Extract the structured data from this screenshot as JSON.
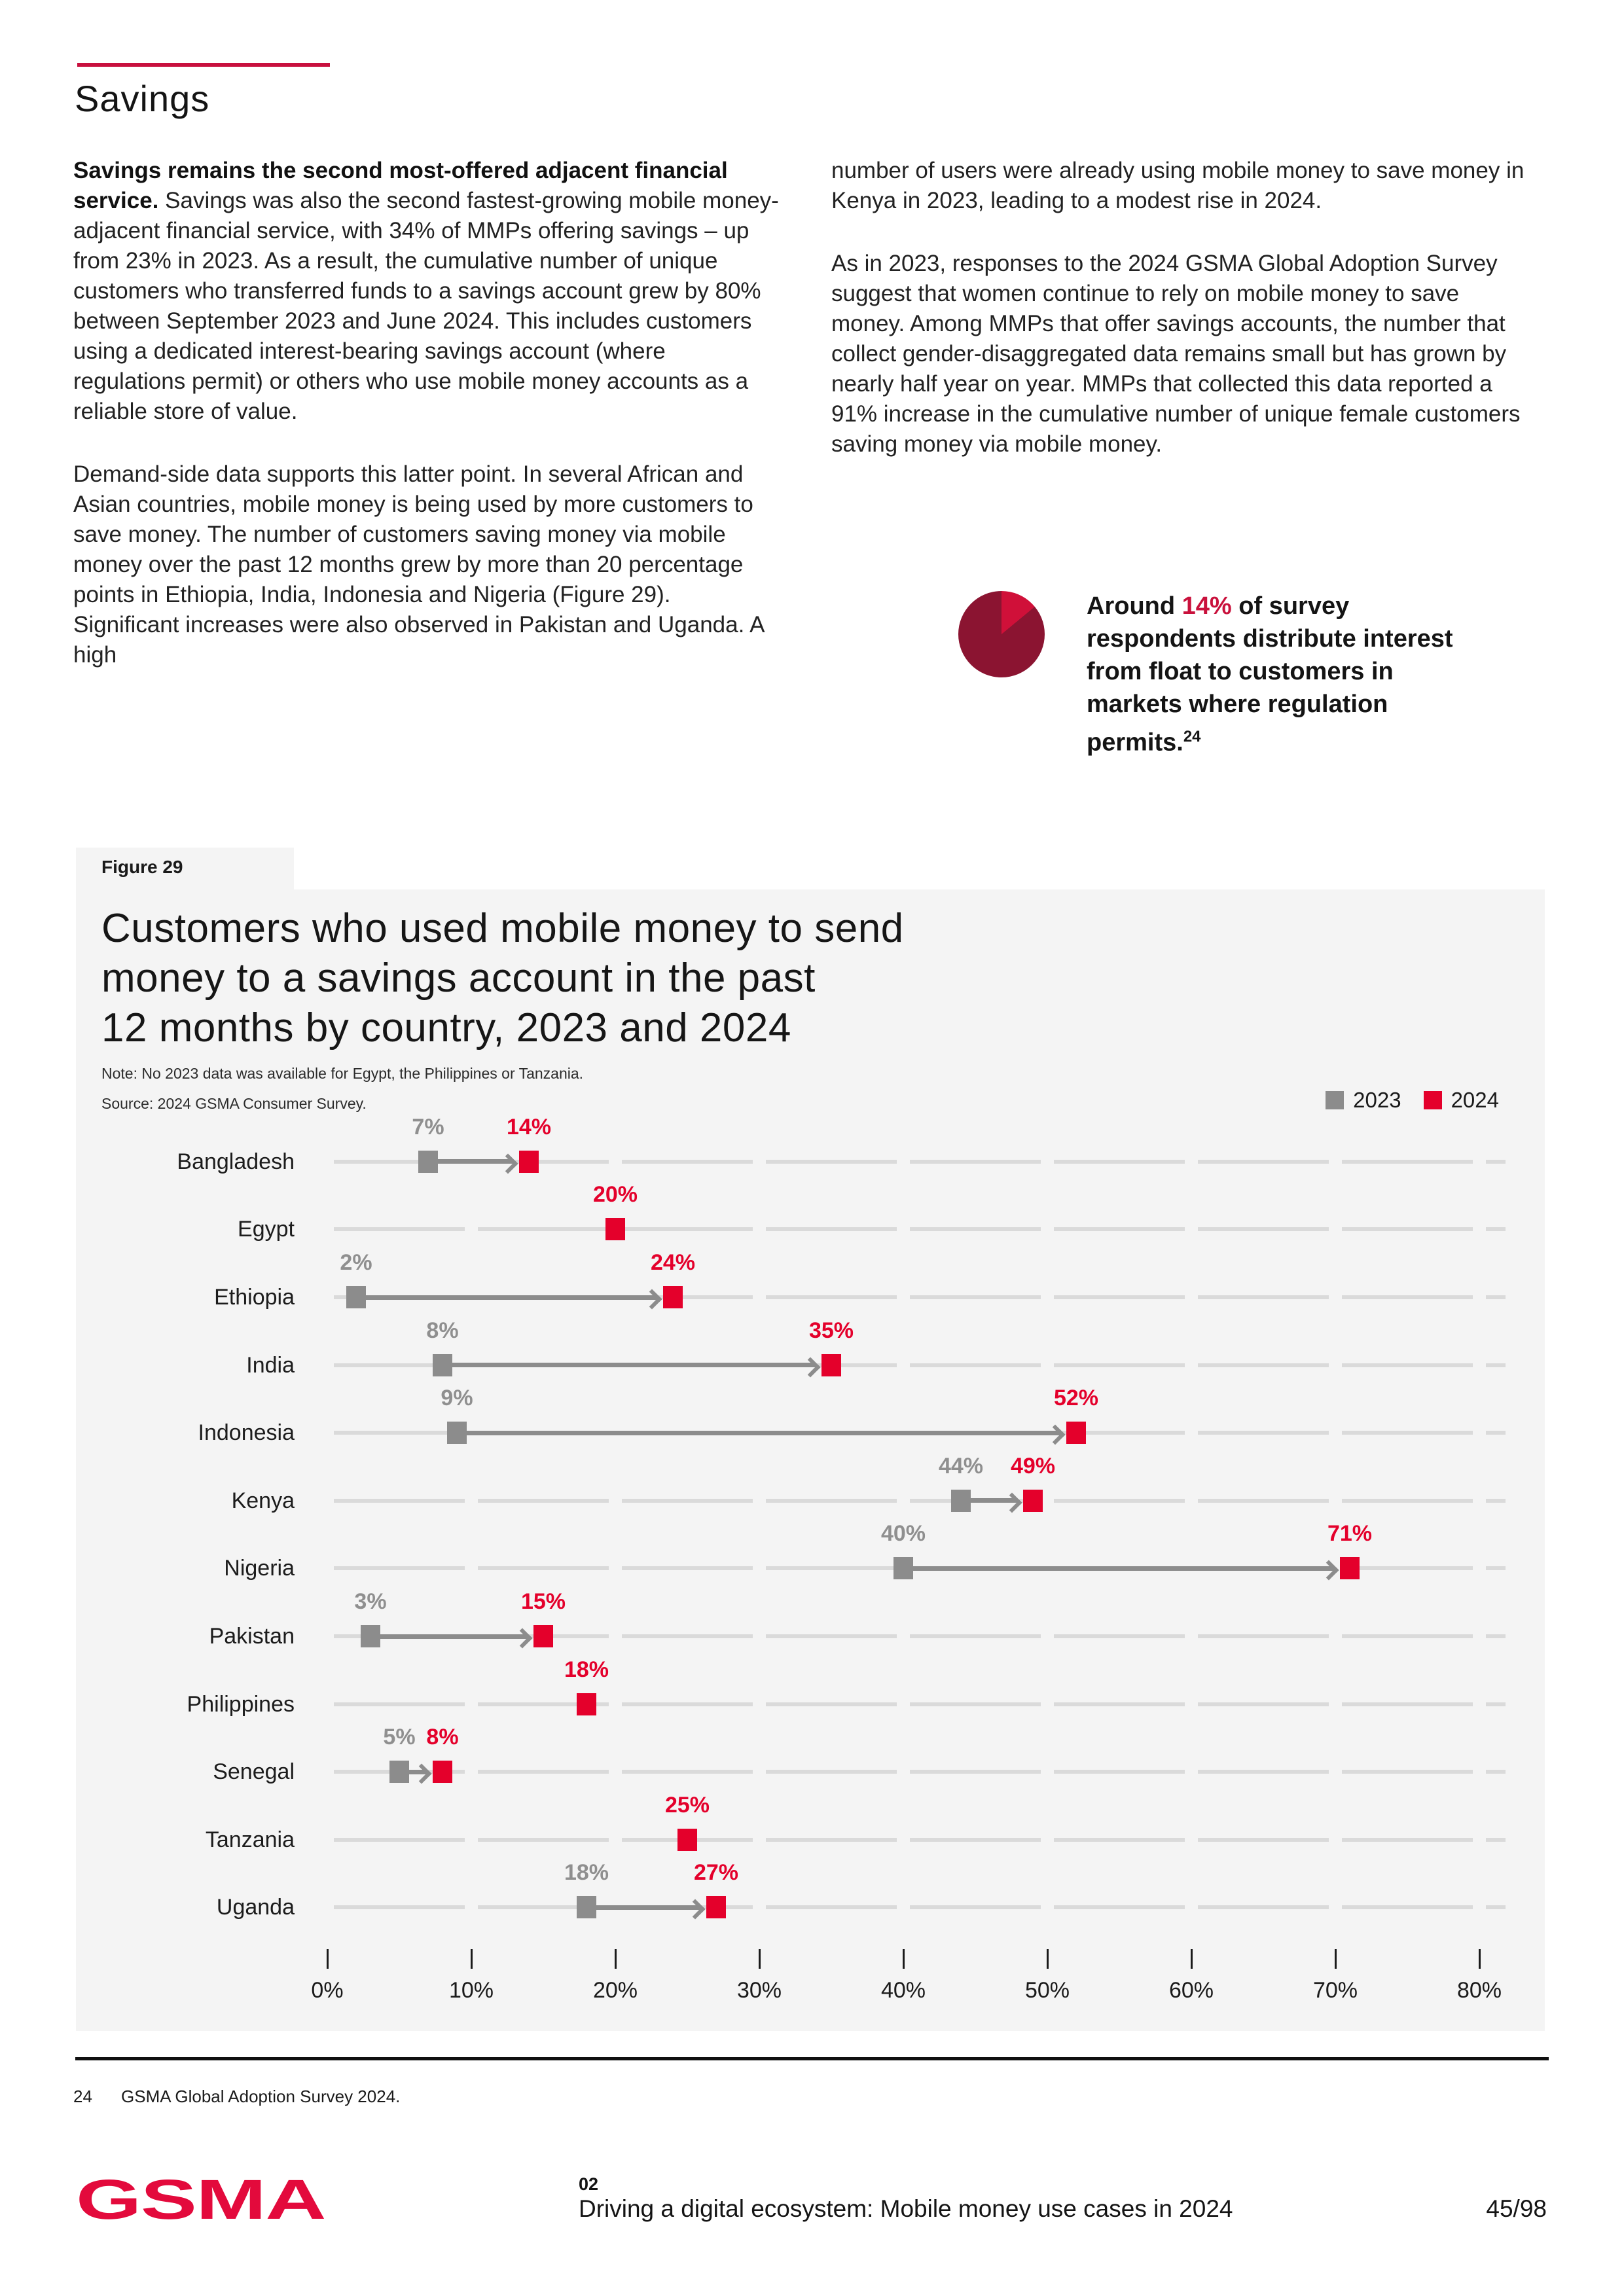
{
  "page": {
    "title": "Savings",
    "footnote": {
      "number": "24",
      "text": "GSMA Global Adoption Survey 2024."
    },
    "footer": {
      "logo": "GSMA",
      "chapter": "02",
      "doc_title": "Driving a digital ecosystem: Mobile money use cases in 2024",
      "page_number": "45/98"
    }
  },
  "article": {
    "col_left": {
      "p1_bold": "Savings remains the second most-offered adjacent financial service.",
      "p1_rest": " Savings was also the second fastest-growing mobile money-adjacent financial service, with 34% of MMPs offering savings – up from 23% in 2023. As a result, the cumulative number of unique customers who transferred funds to a savings account grew by 80% between September 2023 and June 2024. This includes customers using a dedicated interest-bearing savings account (where regulations permit) or others who use mobile money accounts as a reliable store of value.",
      "p2": "Demand-side data supports this latter point. In several African and Asian countries, mobile money is being used by more customers to save money. The number of customers saving money via mobile money over the past 12 months grew by more than 20 percentage points in Ethiopia, India, Indonesia and Nigeria (Figure 29). Significant increases were also observed in Pakistan and Uganda. A high"
    },
    "col_right": {
      "p1": "number of users were already using mobile money to save money in Kenya in 2023, leading to a modest rise in 2024.",
      "p2": "As in 2023, responses to the 2024 GSMA Global Adoption Survey suggest that women continue to rely on mobile money to save money. Among MMPs that offer savings accounts, the number that collect gender-disaggregated data remains small but has grown by nearly half year on year. MMPs that collected this data reported a 91% increase in the cumulative number of unique female customers saving money via mobile money."
    },
    "callout": {
      "prefix": "Around ",
      "highlight": "14%",
      "rest": " of survey respondents distribute interest from float to customers in markets where regulation permits.",
      "footnote_ref": "24",
      "pie_percent": 14
    }
  },
  "figure": {
    "label": "Figure 29",
    "title_lines": [
      "Customers who used mobile money to send",
      "money to a savings account in the past",
      "12 months by country, 2023 and 2024"
    ],
    "note": "Note: No 2023 data was available for Egypt, the Philippines or Tanzania.",
    "source": "Source: 2024 GSMA Consumer Survey.",
    "legend": [
      {
        "label": "2023",
        "color": "#8C8C8C"
      },
      {
        "label": "2024",
        "color": "#E4002B"
      }
    ]
  },
  "chart_data": {
    "type": "dumbbell",
    "title": "Customers who used mobile money to send money to a savings account in the past 12 months by country, 2023 and 2024",
    "xlabel": "",
    "ylabel": "",
    "unit": "%",
    "xlim": [
      0,
      82
    ],
    "grid": "vertical-dashes-on-row-lines",
    "legend_position": "top-right",
    "categories": [
      "Bangladesh",
      "Egypt",
      "Ethiopia",
      "India",
      "Indonesia",
      "Kenya",
      "Nigeria",
      "Pakistan",
      "Philippines",
      "Senegal",
      "Tanzania",
      "Uganda"
    ],
    "series": [
      {
        "name": "2023",
        "color": "#8C8C8C",
        "values": [
          7,
          null,
          2,
          8,
          9,
          44,
          40,
          3,
          null,
          5,
          null,
          18
        ]
      },
      {
        "name": "2024",
        "color": "#E4002B",
        "values": [
          14,
          20,
          24,
          35,
          52,
          49,
          71,
          15,
          18,
          8,
          25,
          27
        ]
      }
    ],
    "xlabel_ticks": [
      "0%",
      "10%",
      "20%",
      "30%",
      "40%",
      "50%",
      "60%",
      "70%",
      "80%"
    ]
  },
  "colors": {
    "accent_red": "#E4002B",
    "rule_red": "#C8103E",
    "highlight_red": "#C9113C",
    "logo_red": "#E30A3C",
    "pie_dark": "#8B1431",
    "pie_light": "#D01039",
    "grey_2023": "#8C8C8C",
    "grey_value_label": "#8F8F8F",
    "baseline_grey": "#DADADA",
    "panel_bg": "#F4F4F4",
    "text_dark": "#1A1A1A"
  }
}
